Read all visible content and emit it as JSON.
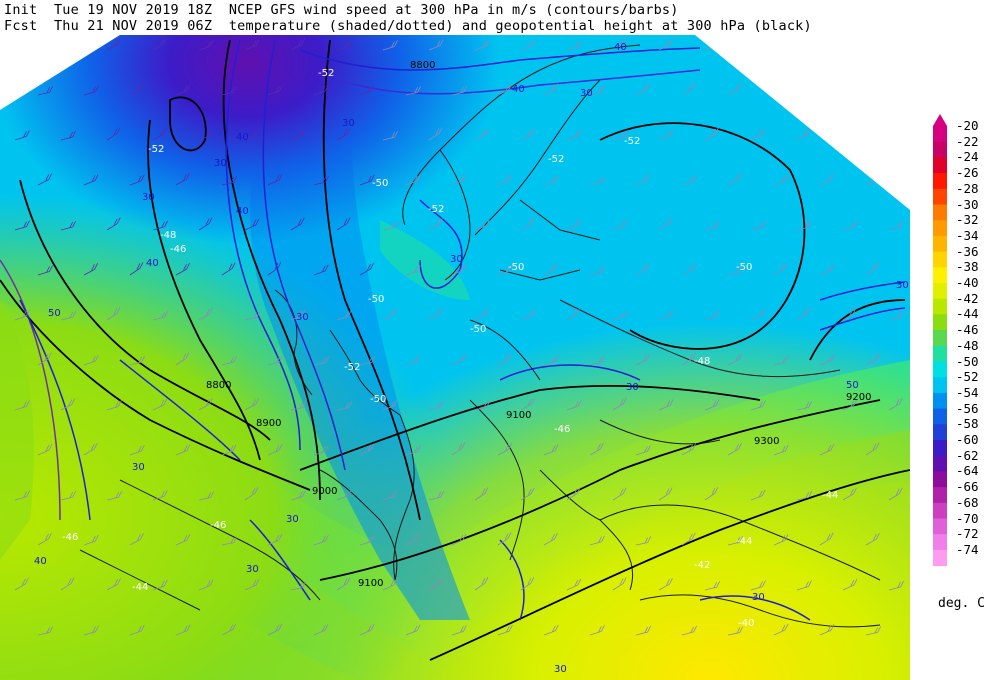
{
  "header": {
    "init_label": "Init",
    "init_value": "Tue 19 NOV 2019 18Z",
    "fcst_label": "Fcst",
    "fcst_value": "Thu 21 NOV 2019 06Z",
    "title_line1": "NCEP GFS wind speed at 300 hPa in m/s (contours/barbs)",
    "title_line2": "temperature (shaded/dotted) and geopotential height at 300 hPa (black)"
  },
  "colorbar": {
    "units_label": "deg. C",
    "levels": [
      "-20",
      "-22",
      "-24",
      "-26",
      "-28",
      "-30",
      "-32",
      "-34",
      "-36",
      "-38",
      "-40",
      "-42",
      "-44",
      "-46",
      "-48",
      "-50",
      "-52",
      "-54",
      "-56",
      "-58",
      "-60",
      "-62",
      "-64",
      "-66",
      "-68",
      "-70",
      "-72",
      "-74"
    ],
    "colors": [
      "#d6007e",
      "#c80064",
      "#e0002a",
      "#ff1800",
      "#ff4400",
      "#ff7a00",
      "#ff9a00",
      "#ffb400",
      "#ffd400",
      "#fff000",
      "#e0f000",
      "#b8e800",
      "#8cdc14",
      "#5ad850",
      "#20e0a0",
      "#00e0e0",
      "#00c4f0",
      "#0090f0",
      "#1060e8",
      "#2040d8",
      "#3c1cc8",
      "#6010b0",
      "#8c0c9c",
      "#b020a8",
      "#cc40c0",
      "#e060d8",
      "#f080e8",
      "#ff9cf0"
    ]
  },
  "map": {
    "temperature_labels": [
      "-52",
      "-50",
      "-52",
      "-52",
      "-50",
      "-48",
      "-50",
      "-52",
      "-52",
      "-50",
      "-50",
      "-50",
      "-52",
      "-46",
      "-48",
      "-46",
      "-44",
      "-44",
      "-42",
      "-40",
      "-46",
      "-46",
      "-44"
    ],
    "height_labels": [
      "8800",
      "8800",
      "8900",
      "9000",
      "9100",
      "9200",
      "9300",
      "9100"
    ],
    "wind_labels": [
      "30",
      "40",
      "40",
      "30",
      "30",
      "40",
      "30",
      "30",
      "40",
      "30",
      "50",
      "30",
      "40",
      "30",
      "30",
      "50",
      "40",
      "30",
      "30",
      "30",
      "30"
    ]
  }
}
